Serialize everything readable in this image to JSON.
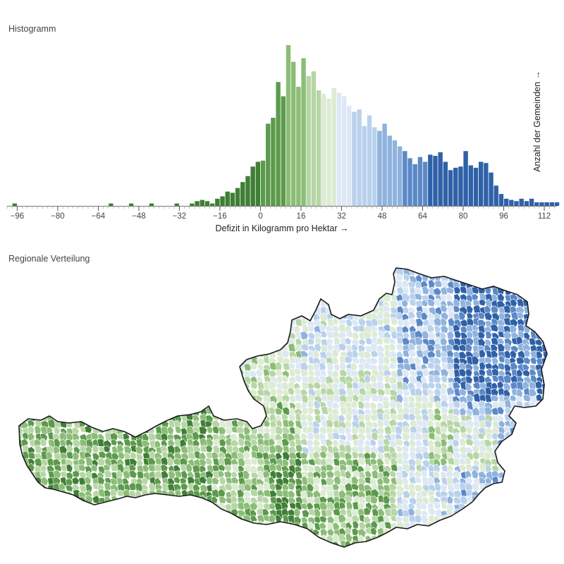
{
  "sections": {
    "histogram_title": "Histogramm",
    "map_title": "Regionale Verteilung"
  },
  "colors": {
    "bins": [
      "#3f7f35",
      "#5c9a4c",
      "#8bbd77",
      "#b7d6a6",
      "#dcebd3",
      "#dde8f4",
      "#b9d1ec",
      "#8fb2de",
      "#5b88c6",
      "#2f61a8"
    ],
    "map_outline": "#1a1a1a",
    "map_edges": "#ffffff"
  },
  "chart_data": {
    "type": "bar",
    "title": "Histogramm",
    "xlabel": "Defizit in Kilogramm pro Hektar →",
    "ylabel": "Anzahl der Gemeinden →",
    "xlim": [
      -100,
      117
    ],
    "bin_width": 2,
    "x_ticks": [
      -96,
      -80,
      -64,
      -48,
      -32,
      -16,
      0,
      16,
      32,
      48,
      64,
      80,
      96,
      112
    ],
    "color_breaks": [
      -8,
      0,
      10,
      18,
      24,
      30,
      36,
      46,
      56,
      66
    ],
    "bins": [
      {
        "x": -98,
        "count": 2
      },
      {
        "x": -96,
        "count": 0
      },
      {
        "x": -94,
        "count": 0
      },
      {
        "x": -92,
        "count": 0
      },
      {
        "x": -90,
        "count": 0
      },
      {
        "x": -88,
        "count": 0
      },
      {
        "x": -86,
        "count": 0
      },
      {
        "x": -84,
        "count": 0
      },
      {
        "x": -82,
        "count": 0
      },
      {
        "x": -80,
        "count": 0
      },
      {
        "x": -78,
        "count": 0
      },
      {
        "x": -76,
        "count": 0
      },
      {
        "x": -74,
        "count": 0
      },
      {
        "x": -72,
        "count": 0
      },
      {
        "x": -70,
        "count": 0
      },
      {
        "x": -68,
        "count": 0
      },
      {
        "x": -66,
        "count": 0
      },
      {
        "x": -64,
        "count": 0
      },
      {
        "x": -62,
        "count": 0
      },
      {
        "x": -60,
        "count": 2
      },
      {
        "x": -58,
        "count": 0
      },
      {
        "x": -56,
        "count": 0
      },
      {
        "x": -54,
        "count": 0
      },
      {
        "x": -52,
        "count": 2
      },
      {
        "x": -50,
        "count": 0
      },
      {
        "x": -48,
        "count": 0
      },
      {
        "x": -46,
        "count": 0
      },
      {
        "x": -44,
        "count": 2
      },
      {
        "x": -42,
        "count": 0
      },
      {
        "x": -40,
        "count": 0
      },
      {
        "x": -38,
        "count": 0
      },
      {
        "x": -36,
        "count": 0
      },
      {
        "x": -34,
        "count": 2
      },
      {
        "x": -32,
        "count": 0
      },
      {
        "x": -30,
        "count": 0
      },
      {
        "x": -28,
        "count": 2
      },
      {
        "x": -26,
        "count": 4
      },
      {
        "x": -24,
        "count": 5
      },
      {
        "x": -22,
        "count": 4
      },
      {
        "x": -20,
        "count": 2
      },
      {
        "x": -18,
        "count": 6
      },
      {
        "x": -16,
        "count": 8
      },
      {
        "x": -14,
        "count": 12
      },
      {
        "x": -12,
        "count": 11
      },
      {
        "x": -10,
        "count": 15
      },
      {
        "x": -8,
        "count": 20
      },
      {
        "x": -6,
        "count": 25
      },
      {
        "x": -4,
        "count": 33
      },
      {
        "x": -2,
        "count": 37
      },
      {
        "x": 0,
        "count": 38
      },
      {
        "x": 2,
        "count": 69
      },
      {
        "x": 4,
        "count": 74
      },
      {
        "x": 6,
        "count": 104
      },
      {
        "x": 8,
        "count": 92
      },
      {
        "x": 10,
        "count": 135
      },
      {
        "x": 12,
        "count": 121
      },
      {
        "x": 14,
        "count": 100
      },
      {
        "x": 16,
        "count": 124
      },
      {
        "x": 18,
        "count": 109
      },
      {
        "x": 20,
        "count": 113
      },
      {
        "x": 22,
        "count": 97
      },
      {
        "x": 24,
        "count": 94
      },
      {
        "x": 26,
        "count": 90
      },
      {
        "x": 28,
        "count": 99
      },
      {
        "x": 30,
        "count": 95
      },
      {
        "x": 32,
        "count": 92
      },
      {
        "x": 34,
        "count": 84
      },
      {
        "x": 36,
        "count": 79
      },
      {
        "x": 38,
        "count": 81
      },
      {
        "x": 40,
        "count": 67
      },
      {
        "x": 42,
        "count": 76
      },
      {
        "x": 44,
        "count": 66
      },
      {
        "x": 46,
        "count": 63
      },
      {
        "x": 48,
        "count": 69
      },
      {
        "x": 50,
        "count": 59
      },
      {
        "x": 52,
        "count": 55
      },
      {
        "x": 54,
        "count": 50
      },
      {
        "x": 56,
        "count": 46
      },
      {
        "x": 58,
        "count": 40
      },
      {
        "x": 60,
        "count": 35
      },
      {
        "x": 62,
        "count": 41
      },
      {
        "x": 64,
        "count": 37
      },
      {
        "x": 66,
        "count": 43
      },
      {
        "x": 68,
        "count": 42
      },
      {
        "x": 70,
        "count": 45
      },
      {
        "x": 72,
        "count": 37
      },
      {
        "x": 74,
        "count": 30
      },
      {
        "x": 76,
        "count": 32
      },
      {
        "x": 78,
        "count": 33
      },
      {
        "x": 80,
        "count": 46
      },
      {
        "x": 82,
        "count": 34
      },
      {
        "x": 84,
        "count": 32
      },
      {
        "x": 86,
        "count": 37
      },
      {
        "x": 88,
        "count": 36
      },
      {
        "x": 90,
        "count": 28
      },
      {
        "x": 92,
        "count": 17
      },
      {
        "x": 94,
        "count": 10
      },
      {
        "x": 96,
        "count": 6
      },
      {
        "x": 98,
        "count": 5
      },
      {
        "x": 100,
        "count": 4
      },
      {
        "x": 102,
        "count": 6
      },
      {
        "x": 104,
        "count": 4
      },
      {
        "x": 106,
        "count": 6
      },
      {
        "x": 108,
        "count": 3
      },
      {
        "x": 110,
        "count": 3
      },
      {
        "x": 112,
        "count": 3
      },
      {
        "x": 114,
        "count": 3
      },
      {
        "x": 116,
        "count": 3
      }
    ],
    "grid": false,
    "legend": "none"
  }
}
